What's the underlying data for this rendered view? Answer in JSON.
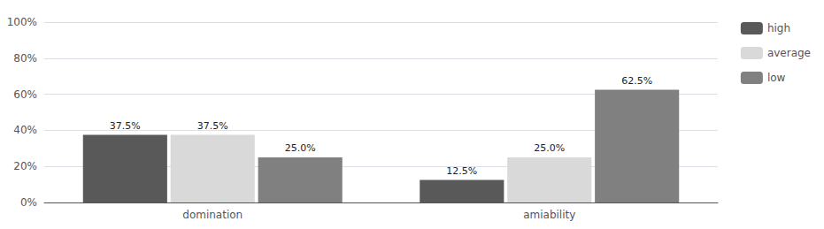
{
  "chart_data": {
    "type": "bar",
    "categories": [
      "domination",
      "amiability"
    ],
    "series": [
      {
        "name": "high",
        "color": "#595959",
        "values": [
          37.5,
          12.5
        ],
        "value_labels": [
          "37.5%",
          "12.5%"
        ]
      },
      {
        "name": "average",
        "color": "#d9d9d9",
        "values": [
          37.5,
          25.0
        ],
        "value_labels": [
          "37.5%",
          "25.0%"
        ]
      },
      {
        "name": "low",
        "color": "#808080",
        "values": [
          25.0,
          62.5
        ],
        "value_labels": [
          "25.0%",
          "62.5%"
        ]
      }
    ],
    "ylim": [
      0,
      100
    ],
    "yticks": [
      {
        "value": 0,
        "label": "0%"
      },
      {
        "value": 20,
        "label": "20%"
      },
      {
        "value": 40,
        "label": "40%"
      },
      {
        "value": 60,
        "label": "60%"
      },
      {
        "value": 80,
        "label": "80%"
      },
      {
        "value": 100,
        "label": "100%"
      }
    ],
    "grid": true,
    "legend": "right",
    "data_labels": true
  }
}
